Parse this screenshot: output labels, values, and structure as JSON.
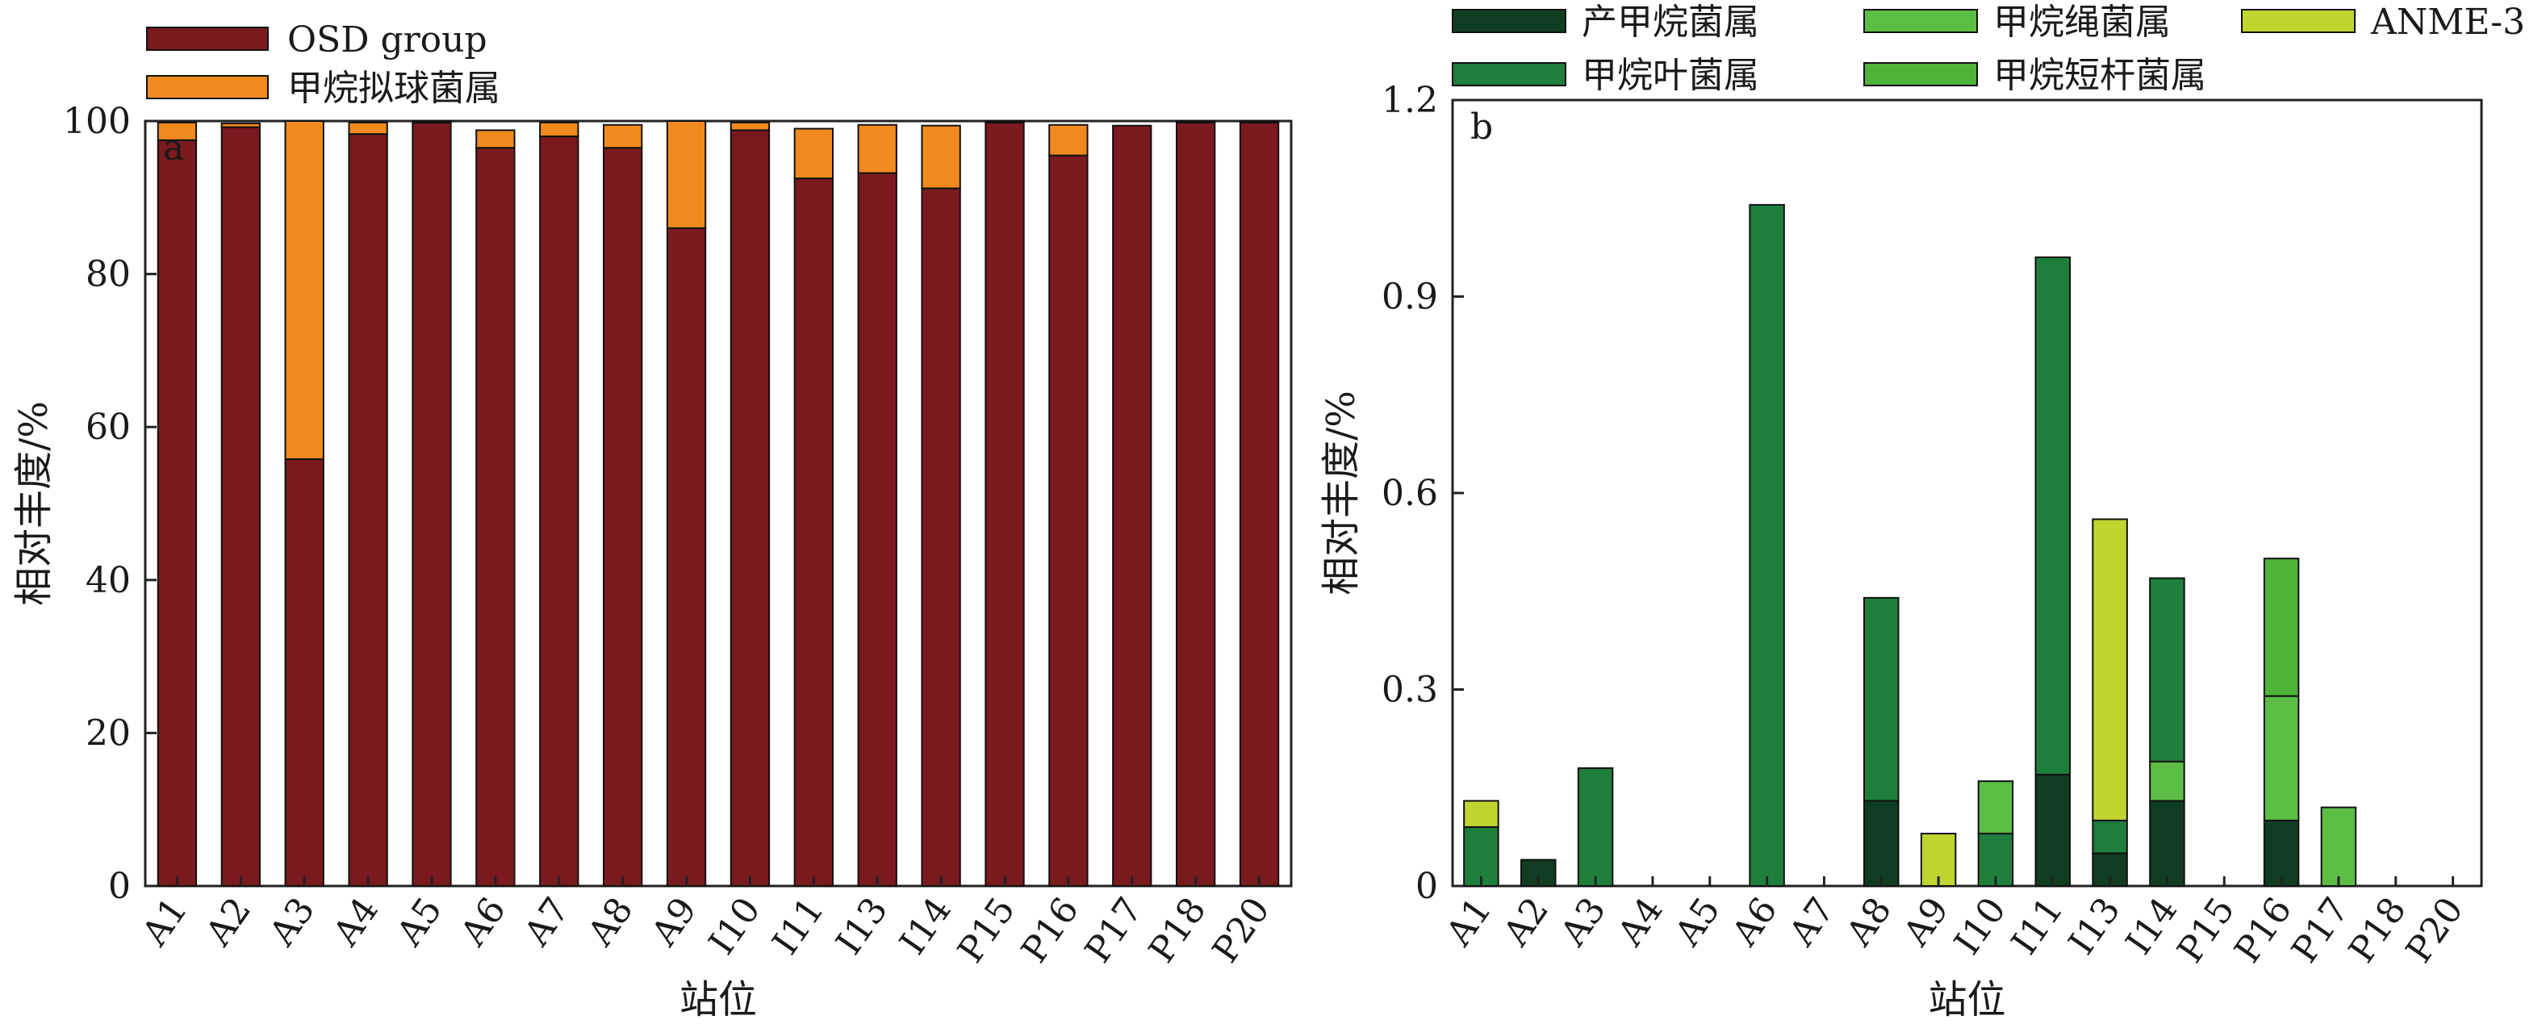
{
  "chart_data": [
    {
      "type": "bar",
      "stacked": true,
      "panel_label": "a",
      "xlabel": "站位",
      "ylabel": "相对丰度/%",
      "ylim": [
        0,
        100
      ],
      "yticks": [
        "0",
        "20",
        "40",
        "60",
        "80",
        "100"
      ],
      "ytick_values": [
        0,
        20,
        40,
        60,
        80,
        100
      ],
      "legend_position": "top-left, above plot",
      "categories": [
        "A1",
        "A2",
        "A3",
        "A4",
        "A5",
        "A6",
        "A7",
        "A8",
        "A9",
        "I10",
        "I11",
        "I13",
        "I14",
        "P15",
        "P16",
        "P17",
        "P18",
        "P20"
      ],
      "series": [
        {
          "name": "OSD group",
          "color": "#7a1a1f",
          "values": [
            97.5,
            99.2,
            55.8,
            98.3,
            99.8,
            96.5,
            98.0,
            96.5,
            86.0,
            98.8,
            92.5,
            93.2,
            91.2,
            99.8,
            95.5,
            99.4,
            99.8,
            99.8
          ]
        },
        {
          "name": "甲烷拟球菌属",
          "color": "#f08a1e",
          "values": [
            2.3,
            0.5,
            44.2,
            1.5,
            0.2,
            2.3,
            1.8,
            3.0,
            14.0,
            1.0,
            6.5,
            6.3,
            8.2,
            0.2,
            4.0,
            0.0,
            0.2,
            0.2
          ]
        }
      ]
    },
    {
      "type": "bar",
      "stacked": true,
      "panel_label": "b",
      "xlabel": "站位",
      "ylabel": "相对丰度/%",
      "ylim": [
        0,
        1.2
      ],
      "yticks": [
        "0",
        "0.3",
        "0.6",
        "0.9",
        "1.2"
      ],
      "ytick_values": [
        0,
        0.3,
        0.6,
        0.9,
        1.2
      ],
      "legend_position": "top, above plot",
      "categories": [
        "A1",
        "A2",
        "A3",
        "A4",
        "A5",
        "A6",
        "A7",
        "A8",
        "A9",
        "I10",
        "I11",
        "I13",
        "I14",
        "P15",
        "P16",
        "P17",
        "P18",
        "P20"
      ],
      "series": [
        {
          "name": "产甲烷菌属",
          "color": "#103d22",
          "values": [
            0,
            0.04,
            0,
            0,
            0,
            0,
            0,
            0.13,
            0,
            0,
            0.17,
            0.05,
            0.13,
            0,
            0.1,
            0,
            0,
            0
          ]
        },
        {
          "name": "甲烷叶菌属",
          "color": "#1e7e3b",
          "values": [
            0.09,
            0,
            0.18,
            0,
            0,
            1.04,
            0,
            0.31,
            0,
            0.08,
            0.79,
            0.05,
            0,
            0,
            0,
            0,
            0,
            0
          ]
        },
        {
          "name": "甲烷绳菌属",
          "color": "#5cbd45",
          "values": [
            0,
            0,
            0,
            0,
            0,
            0,
            0,
            0,
            0,
            0.08,
            0,
            0,
            0.06,
            0,
            0.19,
            0.12,
            0,
            0
          ]
        },
        {
          "name": "甲烷短杆菌属",
          "color": "#4fb33a",
          "values": [
            0,
            0,
            0,
            0,
            0,
            0,
            0,
            0,
            0,
            0,
            0,
            0,
            0,
            0,
            0.21,
            0,
            0,
            0
          ]
        },
        {
          "name": "ANME-3",
          "color": "#bfd631",
          "values": [
            0.04,
            0,
            0,
            0,
            0,
            0,
            0,
            0,
            0.08,
            0,
            0,
            0.46,
            0,
            0,
            0,
            0,
            0,
            0
          ]
        },
        {
          "name": "甲烷叶菌属",
          "color": "#1e7e3b",
          "values": [
            0,
            0,
            0,
            0,
            0,
            0,
            0,
            0,
            0,
            0,
            0,
            0,
            0.28,
            0,
            0,
            0,
            0,
            0
          ]
        }
      ],
      "legend": [
        {
          "name": "产甲烷菌属",
          "color": "#103d22"
        },
        {
          "name": "甲烷绳菌属",
          "color": "#5cbd45"
        },
        {
          "name": "ANME-3",
          "color": "#bfd631"
        },
        {
          "name": "甲烷叶菌属",
          "color": "#1e7e3b"
        },
        {
          "name": "甲烷短杆菌属",
          "color": "#4fb33a"
        }
      ]
    }
  ]
}
